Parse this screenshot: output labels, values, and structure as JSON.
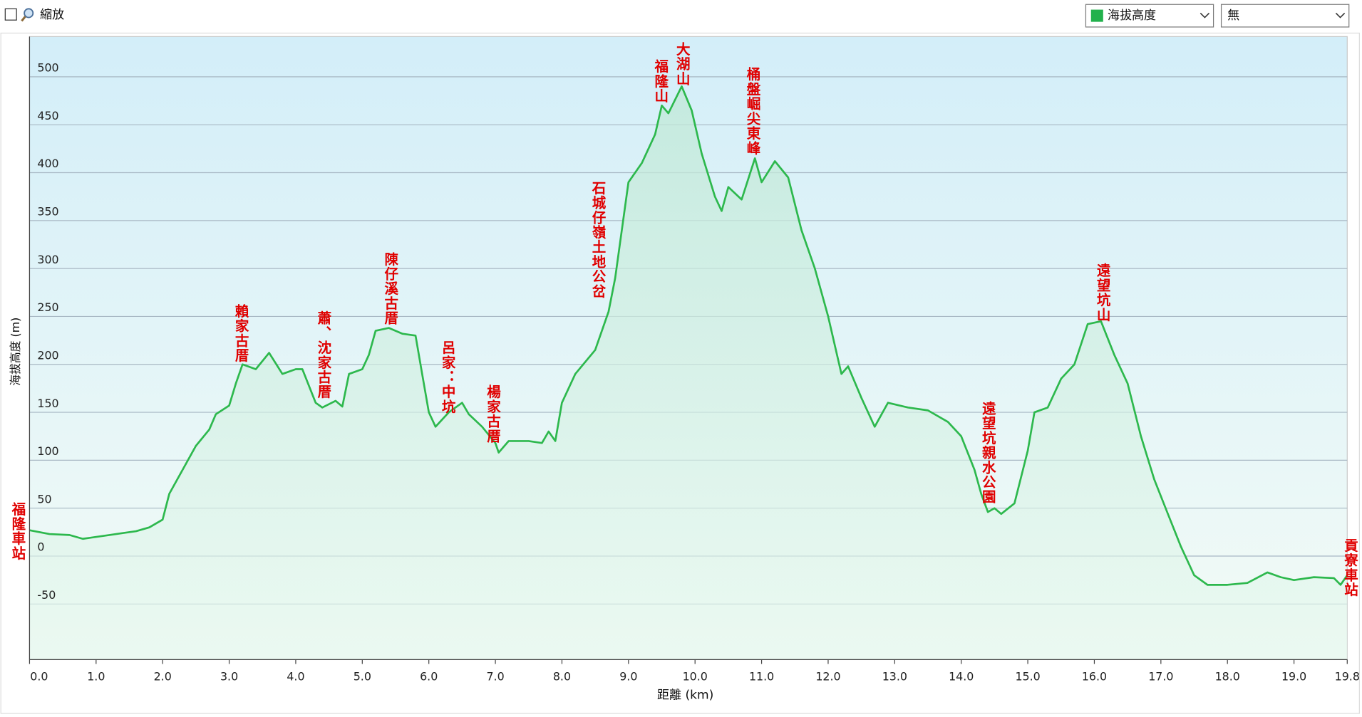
{
  "ui": {
    "zoom_label": "縮放",
    "overlay_select": "無"
  },
  "chart_data": {
    "type": "line",
    "x_label": "距離 (km)",
    "y_label": "海拔高度 (m)",
    "x": [
      0,
      0.3,
      0.6,
      0.8,
      1.2,
      1.4,
      1.6,
      1.8,
      2.0,
      2.1,
      2.3,
      2.5,
      2.7,
      2.8,
      3.0,
      3.1,
      3.2,
      3.4,
      3.6,
      3.8,
      4.0,
      4.1,
      4.3,
      4.4,
      4.6,
      4.7,
      4.8,
      5.0,
      5.1,
      5.2,
      5.4,
      5.6,
      5.8,
      5.9,
      6.0,
      6.1,
      6.3,
      6.5,
      6.6,
      6.8,
      7.0,
      7.05,
      7.2,
      7.5,
      7.7,
      7.8,
      7.9,
      8.0,
      8.2,
      8.5,
      8.7,
      8.8,
      9.0,
      9.2,
      9.4,
      9.5,
      9.6,
      9.8,
      9.95,
      10.1,
      10.3,
      10.4,
      10.5,
      10.7,
      10.9,
      11.0,
      11.2,
      11.4,
      11.6,
      11.8,
      12.0,
      12.2,
      12.3,
      12.5,
      12.7,
      12.9,
      13.2,
      13.5,
      13.8,
      14.0,
      14.2,
      14.3,
      14.4,
      14.5,
      14.6,
      14.8,
      15.0,
      15.1,
      15.3,
      15.5,
      15.7,
      15.9,
      16.1,
      16.3,
      16.5,
      16.7,
      16.9,
      17.1,
      17.3,
      17.5,
      17.7,
      18.0,
      18.3,
      18.6,
      18.8,
      19.0,
      19.3,
      19.6,
      19.7,
      19.8
    ],
    "series": [
      {
        "name": "海拔高度",
        "color": "#2db84d",
        "values": [
          27,
          23,
          22,
          18,
          22,
          24,
          26,
          30,
          38,
          65,
          90,
          115,
          132,
          148,
          157,
          180,
          200,
          195,
          212,
          190,
          195,
          195,
          160,
          155,
          162,
          156,
          190,
          195,
          210,
          235,
          238,
          232,
          230,
          190,
          150,
          135,
          150,
          160,
          148,
          135,
          118,
          108,
          120,
          120,
          118,
          130,
          120,
          160,
          190,
          215,
          255,
          290,
          390,
          410,
          440,
          470,
          462,
          490,
          465,
          420,
          375,
          360,
          385,
          372,
          415,
          390,
          412,
          395,
          340,
          300,
          250,
          190,
          198,
          165,
          135,
          160,
          155,
          152,
          140,
          125,
          90,
          65,
          46,
          50,
          44,
          55,
          110,
          150,
          155,
          185,
          200,
          242,
          245,
          210,
          180,
          125,
          80,
          45,
          10,
          -20,
          -30,
          -30,
          -28,
          -17,
          -22,
          -25,
          -22,
          -23,
          -30,
          -20
        ]
      }
    ],
    "xlim": [
      0,
      19.8
    ],
    "ylim": [
      -108,
      542
    ],
    "xticks": [
      {
        "value": 0,
        "label": "0.0"
      },
      {
        "value": 1,
        "label": "1.0"
      },
      {
        "value": 2,
        "label": "2.0"
      },
      {
        "value": 3,
        "label": "3.0"
      },
      {
        "value": 4,
        "label": "4.0"
      },
      {
        "value": 5,
        "label": "5.0"
      },
      {
        "value": 6,
        "label": "6.0"
      },
      {
        "value": 7,
        "label": "7.0"
      },
      {
        "value": 8,
        "label": "8.0"
      },
      {
        "value": 9,
        "label": "9.0"
      },
      {
        "value": 10,
        "label": "10.0"
      },
      {
        "value": 11,
        "label": "11.0"
      },
      {
        "value": 12,
        "label": "12.0"
      },
      {
        "value": 13,
        "label": "13.0"
      },
      {
        "value": 14,
        "label": "14.0"
      },
      {
        "value": 15,
        "label": "15.0"
      },
      {
        "value": 16,
        "label": "16.0"
      },
      {
        "value": 17,
        "label": "17.0"
      },
      {
        "value": 18,
        "label": "18.0"
      },
      {
        "value": 19,
        "label": "19.0"
      },
      19.8
    ],
    "yticks": [
      -50,
      0,
      50,
      100,
      150,
      200,
      250,
      300,
      350,
      400,
      450,
      500
    ],
    "grid": true,
    "annotations": [
      "福隆車站",
      "賴家古厝",
      "蕭、沈家古厝",
      "陳仔溪古厝",
      "呂家：中坑",
      "楊家古厝",
      "石城仔嶺土地公岔",
      "福隆山",
      "大湖山",
      "桶盤崛尖東峰",
      "遠望坑親水公園",
      "遠望坑山",
      "貢寮車站"
    ]
  }
}
